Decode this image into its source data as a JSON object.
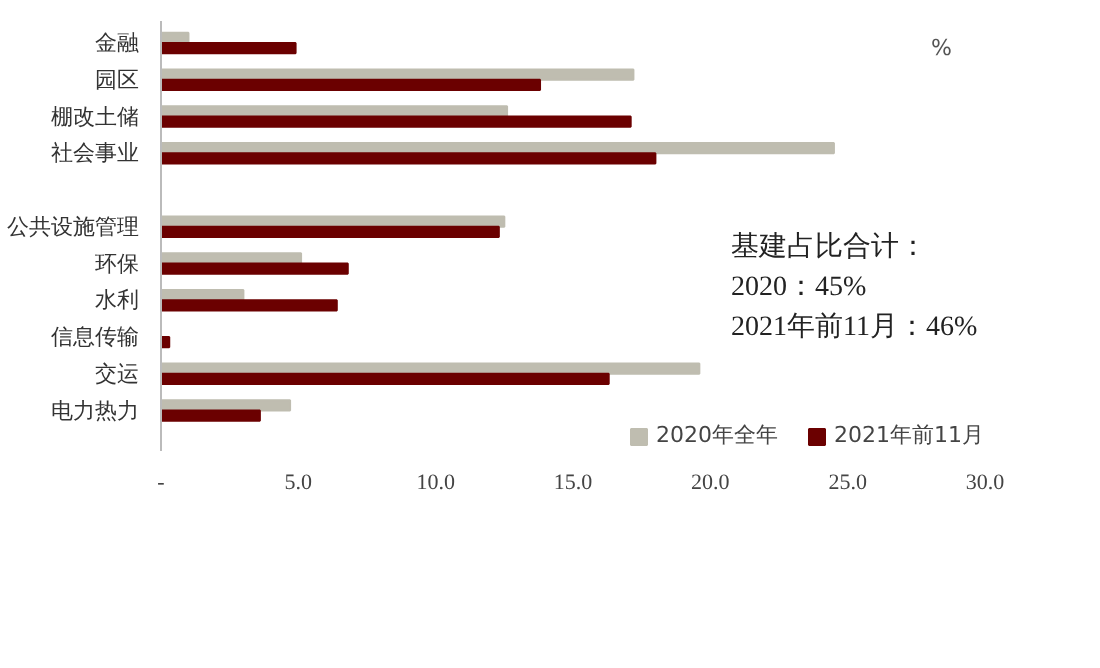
{
  "chart_data": {
    "type": "bar",
    "orientation": "horizontal",
    "categories": [
      "金融",
      "园区",
      "棚改土储",
      "社会事业",
      null,
      "公共设施管理",
      "环保",
      "水利",
      "信息传输",
      "交运",
      "电力热力"
    ],
    "series": [
      {
        "name": "2020年全年",
        "color": "#bfbdb0",
        "values": [
          1.0,
          17.2,
          12.6,
          24.5,
          null,
          12.5,
          5.1,
          3.0,
          0,
          19.6,
          4.7
        ]
      },
      {
        "name": "2021年前11月",
        "color": "#6b0000",
        "values": [
          4.9,
          13.8,
          17.1,
          18.0,
          null,
          12.3,
          6.8,
          6.4,
          0.3,
          16.3,
          3.6
        ]
      }
    ],
    "xlim": [
      0,
      30
    ],
    "xticks": [
      {
        "value": 0,
        "label": "-"
      },
      {
        "value": 5,
        "label": "5.0"
      },
      {
        "value": 10,
        "label": "10.0"
      },
      {
        "value": 15,
        "label": "15.0"
      },
      {
        "value": 20,
        "label": "20.0"
      },
      {
        "value": 25,
        "label": "25.0"
      },
      {
        "value": 30,
        "label": "30.0"
      }
    ],
    "grid": false,
    "legend": "bottom",
    "annotations": [
      "%",
      "基建占比合计：",
      "2020：45%",
      "2021年前11月：46%"
    ]
  }
}
